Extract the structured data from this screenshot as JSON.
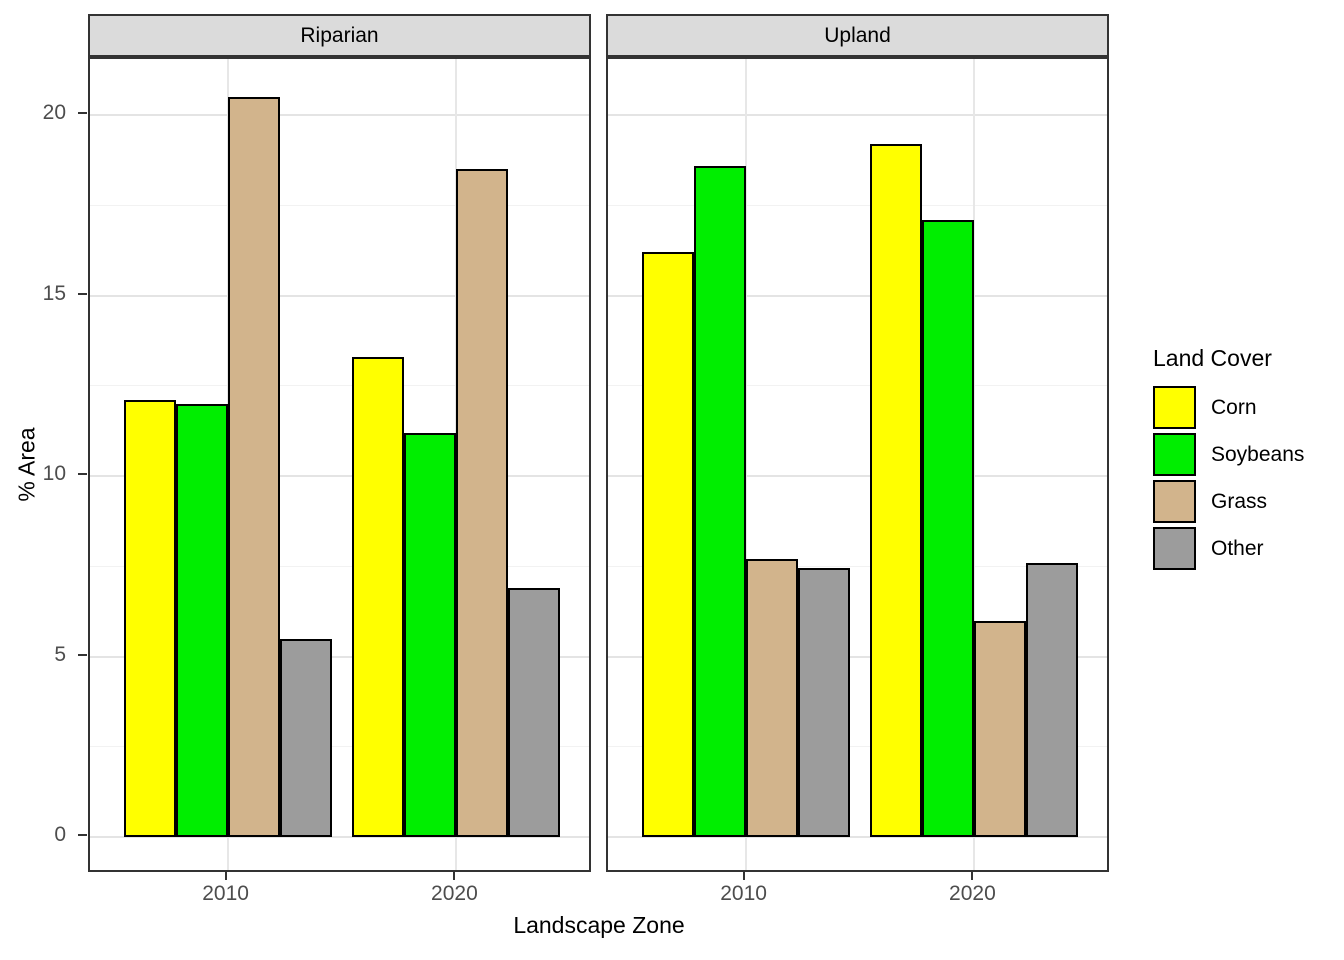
{
  "chart_data": {
    "type": "bar",
    "title": "",
    "xlabel": "Landscape Zone",
    "ylabel": "% Area",
    "legend_title": "Land Cover",
    "legend_position": "right",
    "ylim": [
      0,
      21.6
    ],
    "yticks": [
      0,
      5,
      10,
      15,
      20
    ],
    "minor_gridlines": [
      2.5,
      7.5,
      12.5,
      17.5
    ],
    "categories": [
      "2010",
      "2020"
    ],
    "series": [
      {
        "name": "Corn",
        "color": "#FFFF00"
      },
      {
        "name": "Soybeans",
        "color": "#00EE00"
      },
      {
        "name": "Grass",
        "color": "#D2B48C"
      },
      {
        "name": "Other",
        "color": "#9C9C9C"
      }
    ],
    "facets": [
      {
        "label": "Riparian",
        "groups": [
          {
            "x": "2010",
            "values": [
              12.1,
              12.0,
              20.5,
              5.5
            ]
          },
          {
            "x": "2020",
            "values": [
              13.3,
              11.2,
              18.5,
              6.9
            ]
          }
        ]
      },
      {
        "label": "Upland",
        "groups": [
          {
            "x": "2010",
            "values": [
              16.2,
              18.6,
              7.7,
              7.45
            ]
          },
          {
            "x": "2020",
            "values": [
              19.2,
              17.1,
              6.0,
              7.6
            ]
          }
        ]
      }
    ]
  }
}
